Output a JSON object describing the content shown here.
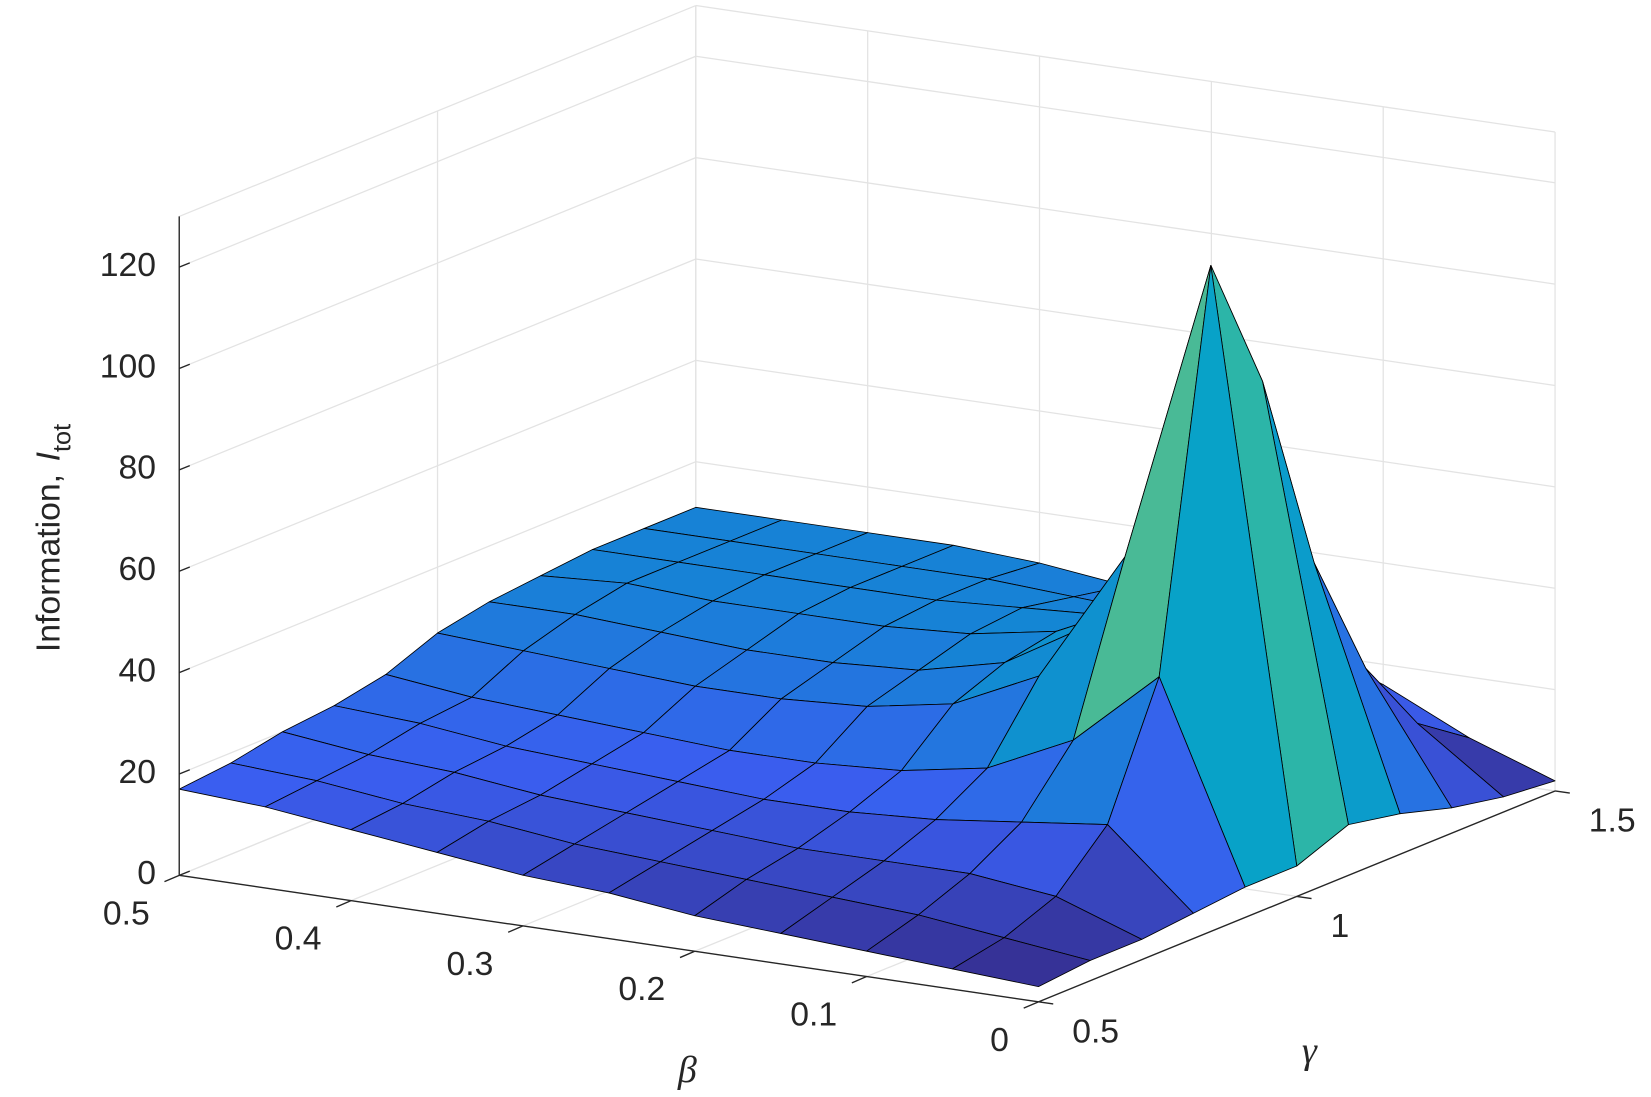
{
  "chart_data": {
    "type": "surface",
    "xlabel": "β",
    "ylabel": "γ",
    "zlabel": {
      "text": "Information,",
      "var": "I",
      "sub": "tot"
    },
    "x": [
      0,
      0.05,
      0.1,
      0.15,
      0.2,
      0.25,
      0.3,
      0.35,
      0.4,
      0.45,
      0.5
    ],
    "y": [
      0.5,
      0.6,
      0.7,
      0.8,
      0.9,
      1.0,
      1.1,
      1.2,
      1.3,
      1.4,
      1.5
    ],
    "z": [
      [
        3,
        4,
        5,
        6,
        7,
        9,
        10,
        12,
        14,
        16,
        17
      ],
      [
        4,
        6,
        8,
        9,
        10,
        11,
        12,
        14,
        15,
        17,
        18
      ],
      [
        4,
        10,
        12,
        12,
        12,
        13,
        14,
        15,
        17,
        18,
        20
      ],
      [
        5,
        20,
        18,
        16,
        15,
        15,
        16,
        17,
        18,
        20,
        21
      ],
      [
        6,
        45,
        30,
        22,
        19,
        18,
        18,
        19,
        20,
        21,
        23
      ],
      [
        6,
        122,
        62,
        36,
        28,
        25,
        24,
        24,
        25,
        26,
        27
      ],
      [
        10,
        95,
        70,
        42,
        32,
        28,
        27,
        27,
        28,
        29,
        29
      ],
      [
        8,
        55,
        55,
        42,
        34,
        31,
        30,
        30,
        30,
        31,
        30
      ],
      [
        5,
        30,
        38,
        36,
        33,
        32,
        31,
        31,
        31,
        31,
        31
      ],
      [
        3,
        15,
        24,
        28,
        29,
        30,
        31,
        31,
        31,
        31,
        31
      ],
      [
        2,
        8,
        16,
        22,
        26,
        28,
        30,
        31,
        31,
        31,
        31
      ]
    ],
    "xlim": [
      0,
      0.5
    ],
    "ylim": [
      0.5,
      1.5
    ],
    "zlim": [
      0,
      130
    ],
    "xticks": [
      0,
      0.1,
      0.2,
      0.3,
      0.4,
      0.5
    ],
    "yticks": [
      0.5,
      1,
      1.5
    ],
    "zticks": [
      0,
      20,
      40,
      60,
      80,
      100,
      120
    ],
    "grid": true,
    "edgecolor": "#000000",
    "colormap": [
      "#352a87",
      "#3a5ef0",
      "#1485d4",
      "#06a7c6",
      "#38b99e",
      "#92bf73",
      "#d9ba56",
      "#fcce2e",
      "#f9fb0e"
    ]
  }
}
